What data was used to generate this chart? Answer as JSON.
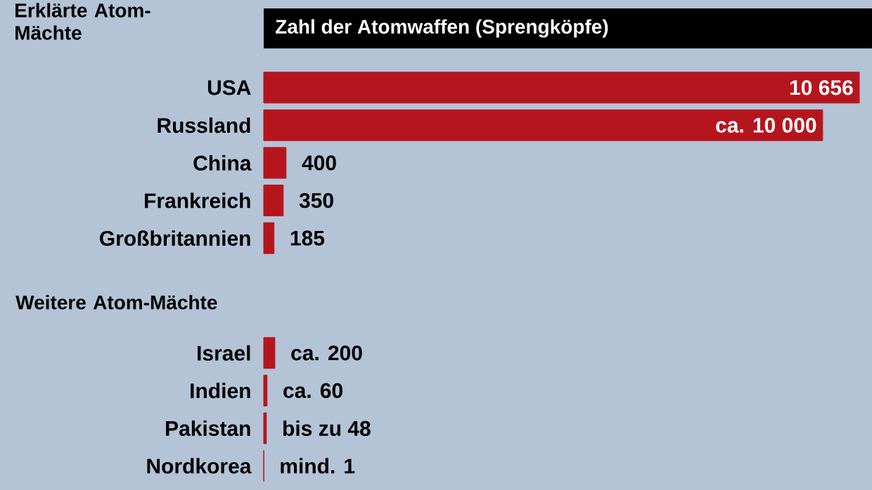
{
  "chart_data": [
    {
      "type": "bar",
      "orientation": "horizontal",
      "title": "Erklärte Atom-Mächte",
      "subtitle": "Zahl der Atomwaffen (Sprengköpfe)",
      "color": "#b5161e",
      "categories": [
        "USA",
        "Russland",
        "China",
        "Frankreich",
        "Großbritannien"
      ],
      "values": [
        10656,
        10000,
        400,
        350,
        185
      ],
      "value_labels": [
        "10 656",
        "ca. 10 000",
        "400",
        "350",
        "185"
      ]
    },
    {
      "type": "bar",
      "orientation": "horizontal",
      "title": "Weitere Atom-Mächte",
      "color": "#b5161e",
      "categories": [
        "Israel",
        "Indien",
        "Pakistan",
        "Nordkorea"
      ],
      "values": [
        200,
        60,
        48,
        1
      ],
      "value_labels": [
        "ca. 200",
        "ca. 60",
        "bis zu 48",
        "mind. 1"
      ]
    }
  ]
}
